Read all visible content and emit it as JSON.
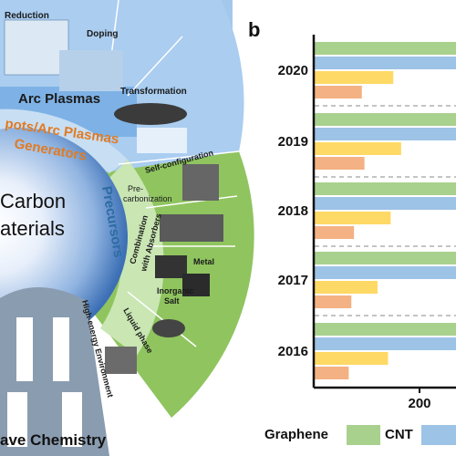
{
  "left_panel": {
    "sectors": {
      "reduction": "Reduction",
      "doping": "Doping",
      "transformation": "Transformation",
      "arc_plasmas": "Arc Plasmas",
      "self_configuration": "Self-configuration",
      "pre_carbonization_1": "Pre-",
      "pre_carbonization_2": "carbonization",
      "combination_1": "Combination",
      "combination_2": "with Absorbers",
      "metal": "Metal",
      "inorganic_1": "Inorganic",
      "inorganic_2": "Salt",
      "liquid_phase": "Liquid phase",
      "high_energy": "High-energy Environment"
    },
    "ring_text": {
      "hotspots": "pots/Arc Plasmas",
      "generators": "Generators",
      "precursors": "Precursors"
    },
    "center_text": {
      "line1": "Carbon",
      "line2": "aterials"
    },
    "footer": "ave Chemistry"
  },
  "right_panel": {
    "label": "b",
    "tick_label": "200",
    "legend": {
      "graphene": "Graphene",
      "cnt": "CNT"
    }
  },
  "chart_data": {
    "type": "bar",
    "categories": [
      "2020",
      "2019",
      "2018",
      "2017",
      "2016"
    ],
    "xtick": "200",
    "series": [
      {
        "name": "Graphene",
        "color": "#a9d18e",
        "values": [
          null,
          null,
          null,
          null,
          null
        ]
      },
      {
        "name": "CNT",
        "color": "#9dc3e6",
        "values": [
          null,
          null,
          null,
          null,
          null
        ]
      },
      {
        "color": "#ffd966",
        "values": [
          150,
          165,
          145,
          120,
          140
        ]
      },
      {
        "color": "#f4b183",
        "values": [
          90,
          95,
          75,
          70,
          65
        ]
      }
    ]
  }
}
